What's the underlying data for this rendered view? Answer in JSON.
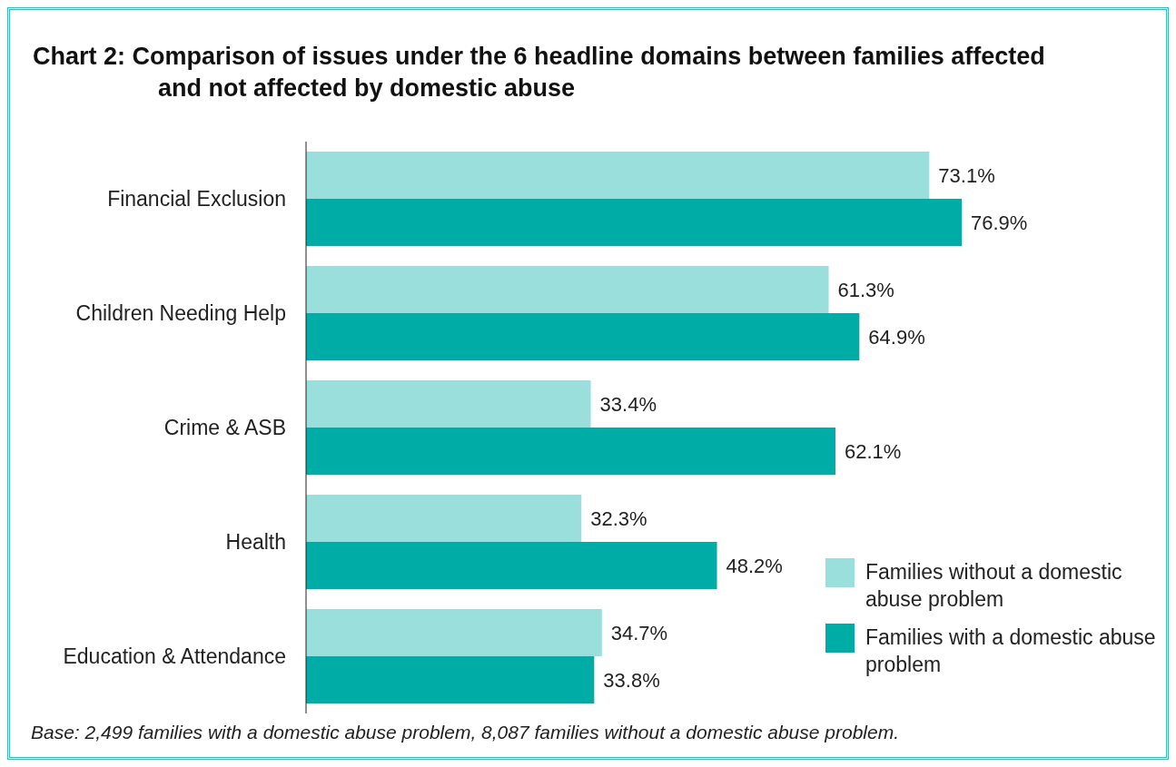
{
  "chart_data": {
    "type": "bar",
    "orientation": "horizontal",
    "title": "Chart 2:  Comparison of issues under the 6 headline domains between families affected and not affected by domestic abuse",
    "categories": [
      "Financial Exclusion",
      "Children Needing Help",
      "Crime & ASB",
      "Health",
      "Education & Attendance"
    ],
    "series": [
      {
        "name": "Families without a domestic abuse problem",
        "color": "#9adfdb",
        "values": [
          73.1,
          61.3,
          33.4,
          32.3,
          34.7
        ],
        "value_labels": [
          "73.1%",
          "61.3%",
          "33.4%",
          "32.3%",
          "34.7%"
        ]
      },
      {
        "name": "Families with a domestic abuse problem",
        "color": "#00aca6",
        "values": [
          76.9,
          64.9,
          62.1,
          48.2,
          33.8
        ],
        "value_labels": [
          "76.9%",
          "64.9%",
          "62.1%",
          "48.2%",
          "33.8%"
        ]
      }
    ],
    "tick_labels": "y",
    "legend": "bottom right",
    "annotations": [
      "Base: 2,499 families with a domestic abuse problem, 8,087 families without a domestic abuse problem."
    ]
  }
}
